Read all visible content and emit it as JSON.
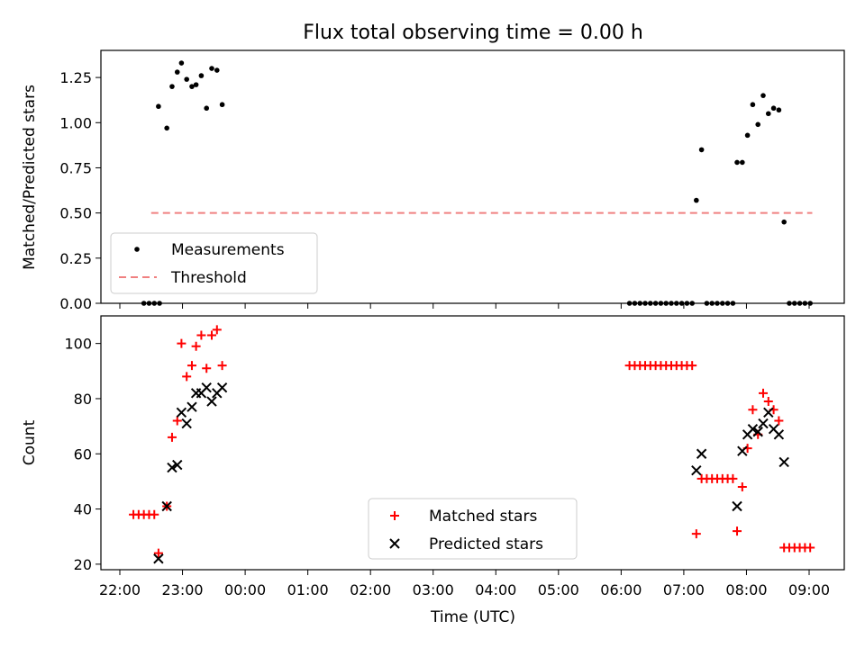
{
  "figure": {
    "title": "Flux total observing time = 0.00 h",
    "xlabel": "Time (UTC)"
  },
  "chart_data": [
    {
      "type": "scatter",
      "ylabel": "Matched/Predicted stars",
      "ylim": [
        0,
        1.4
      ],
      "yticks": [
        0.0,
        0.25,
        0.5,
        0.75,
        1.0,
        1.25
      ],
      "ytick_labels": [
        "0.00",
        "0.25",
        "0.50",
        "0.75",
        "1.00",
        "1.25"
      ],
      "xlim": [
        "22:00",
        "09:00"
      ],
      "grid": false,
      "legend": {
        "position": "lower-left",
        "entries": [
          "Measurements",
          "Threshold"
        ]
      },
      "threshold": {
        "name": "Threshold",
        "value": 0.5,
        "x_start": "22:30",
        "x_end": "09:03",
        "color": "#f08080",
        "style": "dashed"
      },
      "series": [
        {
          "name": "Measurements",
          "color": "#000000",
          "marker": "dot",
          "points": [
            [
              "22:23",
              0.0
            ],
            [
              "22:28",
              0.0
            ],
            [
              "22:33",
              0.0
            ],
            [
              "22:38",
              0.0
            ],
            [
              "22:37",
              1.09
            ],
            [
              "22:45",
              0.97
            ],
            [
              "22:50",
              1.2
            ],
            [
              "22:55",
              1.28
            ],
            [
              "22:59",
              1.33
            ],
            [
              "23:04",
              1.24
            ],
            [
              "23:09",
              1.2
            ],
            [
              "23:13",
              1.21
            ],
            [
              "23:18",
              1.26
            ],
            [
              "23:23",
              1.08
            ],
            [
              "23:28",
              1.3
            ],
            [
              "23:33",
              1.29
            ],
            [
              "23:38",
              1.1
            ],
            [
              "06:08",
              0.0
            ],
            [
              "06:13",
              0.0
            ],
            [
              "06:18",
              0.0
            ],
            [
              "06:23",
              0.0
            ],
            [
              "06:28",
              0.0
            ],
            [
              "06:33",
              0.0
            ],
            [
              "06:38",
              0.0
            ],
            [
              "06:43",
              0.0
            ],
            [
              "06:48",
              0.0
            ],
            [
              "06:53",
              0.0
            ],
            [
              "06:58",
              0.0
            ],
            [
              "07:03",
              0.0
            ],
            [
              "07:08",
              0.0
            ],
            [
              "07:12",
              0.57
            ],
            [
              "07:17",
              0.85
            ],
            [
              "07:22",
              0.0
            ],
            [
              "07:27",
              0.0
            ],
            [
              "07:32",
              0.0
            ],
            [
              "07:37",
              0.0
            ],
            [
              "07:42",
              0.0
            ],
            [
              "07:47",
              0.0
            ],
            [
              "07:51",
              0.78
            ],
            [
              "07:56",
              0.78
            ],
            [
              "08:01",
              0.93
            ],
            [
              "08:06",
              1.1
            ],
            [
              "08:11",
              0.99
            ],
            [
              "08:16",
              1.15
            ],
            [
              "08:21",
              1.05
            ],
            [
              "08:26",
              1.08
            ],
            [
              "08:31",
              1.07
            ],
            [
              "08:36",
              0.45
            ],
            [
              "08:41",
              0.0
            ],
            [
              "08:46",
              0.0
            ],
            [
              "08:51",
              0.0
            ],
            [
              "08:56",
              0.0
            ],
            [
              "09:01",
              0.0
            ]
          ]
        }
      ]
    },
    {
      "type": "scatter",
      "ylabel": "Count",
      "ylim": [
        18,
        110
      ],
      "yticks": [
        20,
        40,
        60,
        80,
        100
      ],
      "ytick_labels": [
        "20",
        "40",
        "60",
        "80",
        "100"
      ],
      "xlim": [
        "22:00",
        "09:00"
      ],
      "xticks": [
        "22:00",
        "23:00",
        "00:00",
        "01:00",
        "02:00",
        "03:00",
        "04:00",
        "05:00",
        "06:00",
        "07:00",
        "08:00",
        "09:00"
      ],
      "grid": false,
      "legend": {
        "position": "lower-center",
        "entries": [
          "Matched stars",
          "Predicted stars"
        ]
      },
      "series": [
        {
          "name": "Matched stars",
          "color": "#ff0000",
          "marker": "plus",
          "points": [
            [
              "22:13",
              38
            ],
            [
              "22:18",
              38
            ],
            [
              "22:23",
              38
            ],
            [
              "22:28",
              38
            ],
            [
              "22:33",
              38
            ],
            [
              "22:37",
              24
            ],
            [
              "22:45",
              41
            ],
            [
              "22:50",
              66
            ],
            [
              "22:55",
              72
            ],
            [
              "22:59",
              100
            ],
            [
              "23:04",
              88
            ],
            [
              "23:09",
              92
            ],
            [
              "23:13",
              99
            ],
            [
              "23:18",
              103
            ],
            [
              "23:23",
              91
            ],
            [
              "23:28",
              103
            ],
            [
              "23:33",
              105
            ],
            [
              "23:38",
              92
            ],
            [
              "06:08",
              92
            ],
            [
              "06:13",
              92
            ],
            [
              "06:18",
              92
            ],
            [
              "06:23",
              92
            ],
            [
              "06:28",
              92
            ],
            [
              "06:33",
              92
            ],
            [
              "06:38",
              92
            ],
            [
              "06:43",
              92
            ],
            [
              "06:48",
              92
            ],
            [
              "06:53",
              92
            ],
            [
              "06:58",
              92
            ],
            [
              "07:03",
              92
            ],
            [
              "07:08",
              92
            ],
            [
              "07:12",
              31
            ],
            [
              "07:17",
              51
            ],
            [
              "07:22",
              51
            ],
            [
              "07:27",
              51
            ],
            [
              "07:32",
              51
            ],
            [
              "07:37",
              51
            ],
            [
              "07:42",
              51
            ],
            [
              "07:47",
              51
            ],
            [
              "07:51",
              32
            ],
            [
              "07:56",
              48
            ],
            [
              "08:01",
              62
            ],
            [
              "08:06",
              76
            ],
            [
              "08:11",
              67
            ],
            [
              "08:16",
              82
            ],
            [
              "08:21",
              79
            ],
            [
              "08:26",
              76
            ],
            [
              "08:31",
              72
            ],
            [
              "08:36",
              26
            ],
            [
              "08:41",
              26
            ],
            [
              "08:46",
              26
            ],
            [
              "08:51",
              26
            ],
            [
              "08:56",
              26
            ],
            [
              "09:01",
              26
            ]
          ]
        },
        {
          "name": "Predicted stars",
          "color": "#000000",
          "marker": "x",
          "points": [
            [
              "22:37",
              22
            ],
            [
              "22:45",
              41
            ],
            [
              "22:50",
              55
            ],
            [
              "22:55",
              56
            ],
            [
              "22:59",
              75
            ],
            [
              "23:04",
              71
            ],
            [
              "23:09",
              77
            ],
            [
              "23:13",
              82
            ],
            [
              "23:18",
              82
            ],
            [
              "23:23",
              84
            ],
            [
              "23:28",
              79
            ],
            [
              "23:33",
              82
            ],
            [
              "23:38",
              84
            ],
            [
              "07:12",
              54
            ],
            [
              "07:17",
              60
            ],
            [
              "07:51",
              41
            ],
            [
              "07:56",
              61
            ],
            [
              "08:01",
              67
            ],
            [
              "08:06",
              69
            ],
            [
              "08:11",
              68
            ],
            [
              "08:16",
              71
            ],
            [
              "08:21",
              75
            ],
            [
              "08:26",
              69
            ],
            [
              "08:31",
              67
            ],
            [
              "08:36",
              57
            ]
          ]
        }
      ]
    }
  ]
}
